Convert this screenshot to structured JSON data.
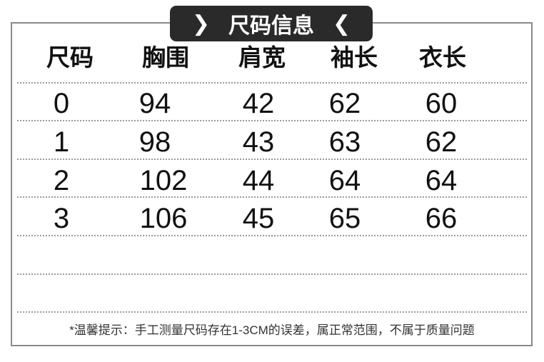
{
  "title": "尺码信息",
  "title_icons": [
    "chevron-right-icon",
    "chevron-left-icon"
  ],
  "table": {
    "headers": [
      "尺码",
      "胸围",
      "肩宽",
      "袖长",
      "衣长"
    ],
    "rows": [
      [
        "0",
        "94",
        "42",
        "62",
        "60"
      ],
      [
        "1",
        "98",
        "43",
        "63",
        "62"
      ],
      [
        "2",
        "102",
        "44",
        "64",
        "64"
      ],
      [
        "3",
        "106",
        "45",
        "65",
        "66"
      ]
    ]
  },
  "note": "*温馨提示：手工测量尺码存在1-3CM的误差，属正常范围，不属于质量问题"
}
